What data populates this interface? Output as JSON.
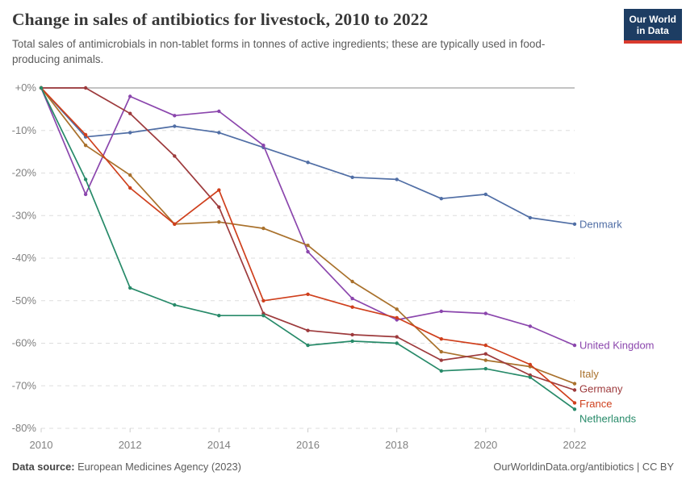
{
  "chart_data": {
    "type": "line",
    "title": "Change in sales of antibiotics for livestock, 2010 to 2022",
    "subtitle": "Total sales of antimicrobials in non-tablet forms in tonnes of active ingredients; these are typically used in food-producing animals.",
    "unit": "%",
    "grid": "horizontal-dashed",
    "legend_position": "right-edge-labels",
    "xlim": [
      2010,
      2022
    ],
    "ylim": [
      -80,
      0
    ],
    "x": [
      2010,
      2011,
      2012,
      2013,
      2014,
      2015,
      2016,
      2017,
      2018,
      2019,
      2020,
      2021,
      2022
    ],
    "x_tick_years": [
      2010,
      2012,
      2014,
      2016,
      2018,
      2020,
      2022
    ],
    "y_ticks": [
      {
        "value": 0,
        "label": "+0%"
      },
      {
        "value": -10,
        "label": "-10%"
      },
      {
        "value": -20,
        "label": "-20%"
      },
      {
        "value": -30,
        "label": "-30%"
      },
      {
        "value": -40,
        "label": "-40%"
      },
      {
        "value": -50,
        "label": "-50%"
      },
      {
        "value": -60,
        "label": "-60%"
      },
      {
        "value": -70,
        "label": "-70%"
      },
      {
        "value": -80,
        "label": "-80%"
      }
    ],
    "series": [
      {
        "name": "Denmark",
        "color": "#506ea5",
        "values": [
          0,
          -11.5,
          -10.5,
          -9,
          -10.5,
          -14,
          -17.5,
          -21,
          -21.5,
          -26,
          -25,
          -30.5,
          -32
        ]
      },
      {
        "name": "United Kingdom",
        "color": "#8b46ad",
        "values": [
          0,
          -25,
          -2,
          -6.5,
          -5.5,
          -13.5,
          -38.5,
          -49.5,
          -54.5,
          -52.5,
          -53,
          -56,
          -60.5
        ]
      },
      {
        "name": "Italy",
        "color": "#a9712c",
        "values": [
          0,
          -13.5,
          -20.5,
          -32,
          -31.5,
          -33,
          -37,
          -45.5,
          -52,
          -62,
          -64,
          -65.5,
          -69.5
        ]
      },
      {
        "name": "Germany",
        "color": "#9d3a3c",
        "values": [
          0,
          0,
          -6,
          -16,
          -28,
          -53,
          -57,
          -58,
          -58.5,
          -64,
          -62.5,
          -67.5,
          -71
        ]
      },
      {
        "name": "France",
        "color": "#cf3f1c",
        "values": [
          0,
          -11,
          -23.5,
          -32,
          -24,
          -50,
          -48.5,
          -51.5,
          -54,
          -59,
          -60.5,
          -65,
          -74
        ]
      },
      {
        "name": "Netherlands",
        "color": "#278a69",
        "values": [
          0,
          -21.5,
          -47,
          -51,
          -53.5,
          -53.5,
          -60.5,
          -59.5,
          -60,
          -66.5,
          -66,
          -68,
          -75.5
        ]
      }
    ]
  },
  "logo": {
    "line1": "Our World",
    "line2": "in Data",
    "bg_color": "#1d3d63",
    "accent_color": "#d93a2d"
  },
  "footer": {
    "source_label": "Data source:",
    "source_text": " European Medicines Agency (2023)",
    "right_text": "OurWorldinData.org/antibiotics | CC BY"
  }
}
